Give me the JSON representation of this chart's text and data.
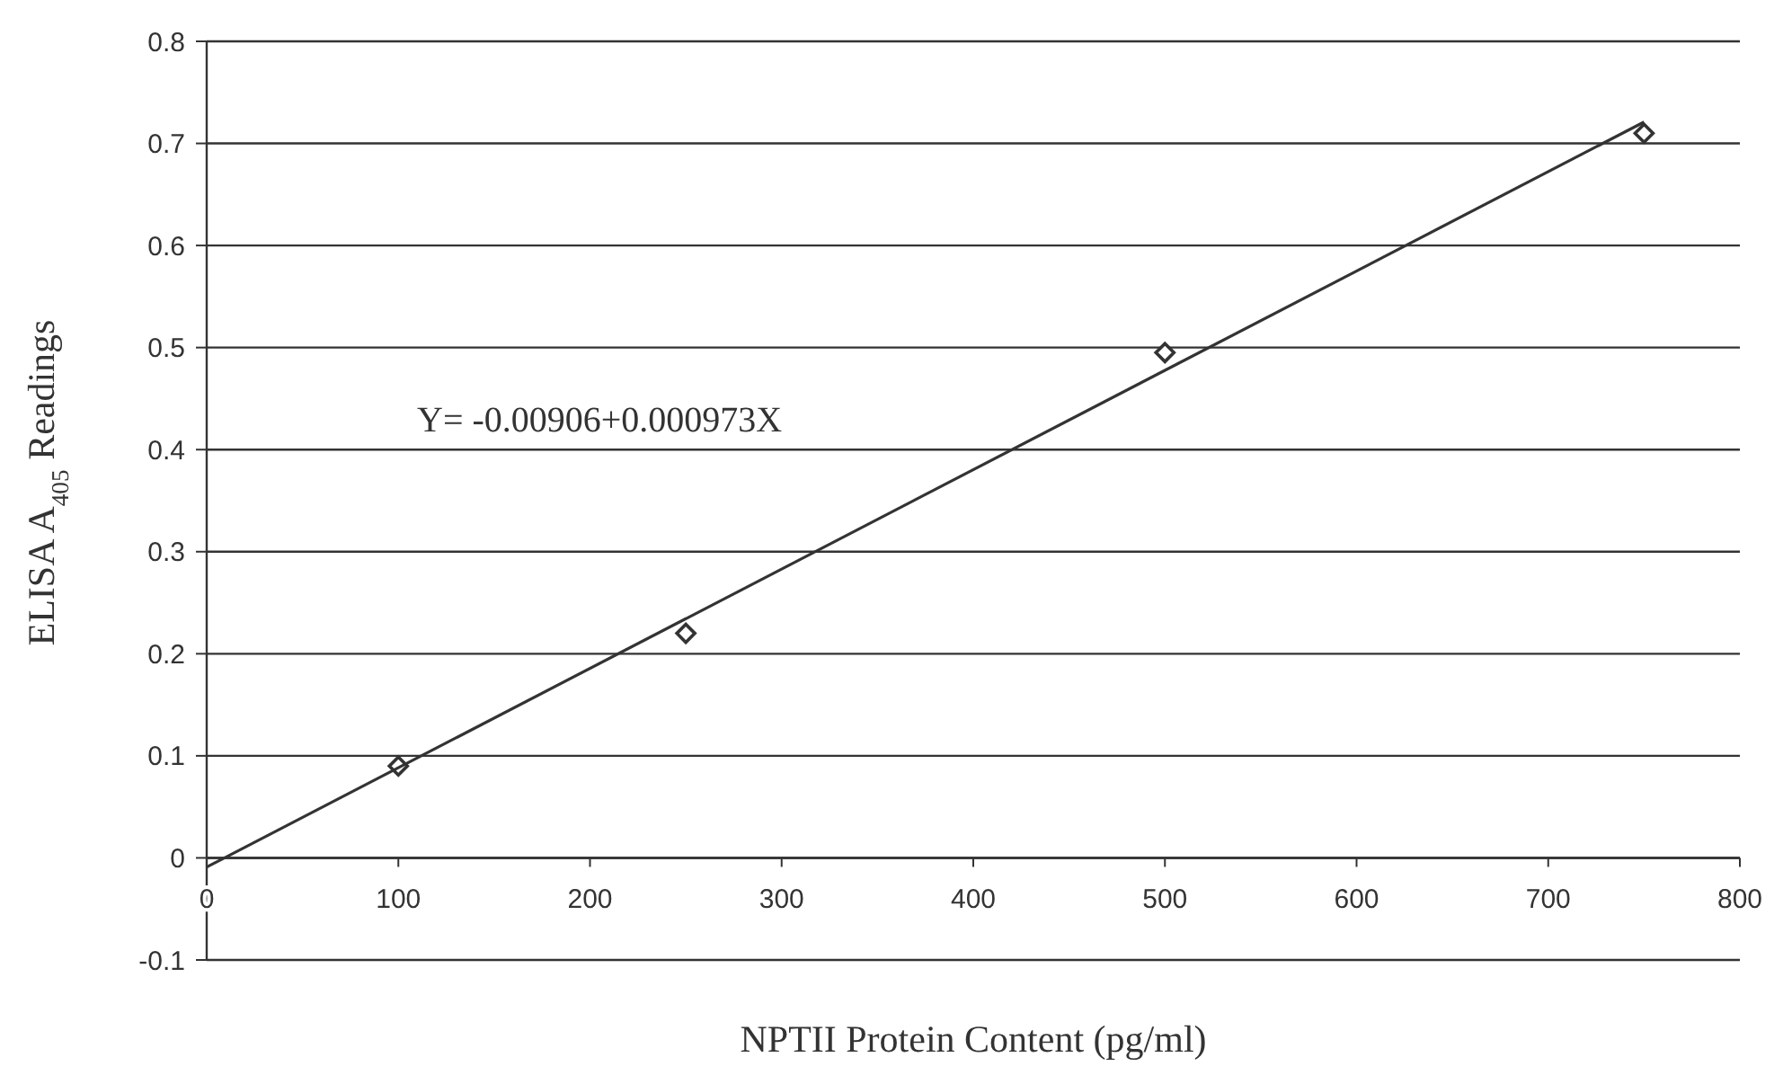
{
  "chart_data": {
    "type": "scatter",
    "xlabel": "NPTII Protein Content (pg/ml)",
    "ylabel": "ELISA A$_{405}$ Readings",
    "xlim": [
      0,
      800
    ],
    "ylim": [
      -0.1,
      0.8
    ],
    "xticks": [
      0,
      100,
      200,
      300,
      400,
      500,
      600,
      700,
      800
    ],
    "yticks": [
      -0.1,
      0,
      0.1,
      0.2,
      0.3,
      0.4,
      0.5,
      0.6,
      0.7,
      0.8
    ],
    "grid": "y",
    "marker": "diamond",
    "series": [
      {
        "color": "#333333",
        "x": [
          100,
          250,
          500,
          750
        ],
        "values": [
          0.09,
          0.22,
          0.495,
          0.71
        ]
      },
      {
        "type": "line",
        "color": "#333333",
        "line_style": "solid",
        "marker": "none",
        "x": [
          0,
          750
        ],
        "values": [
          -0.009,
          0.721
        ]
      }
    ],
    "annotations": [
      "Y= -0.00906+0.000973X"
    ]
  }
}
